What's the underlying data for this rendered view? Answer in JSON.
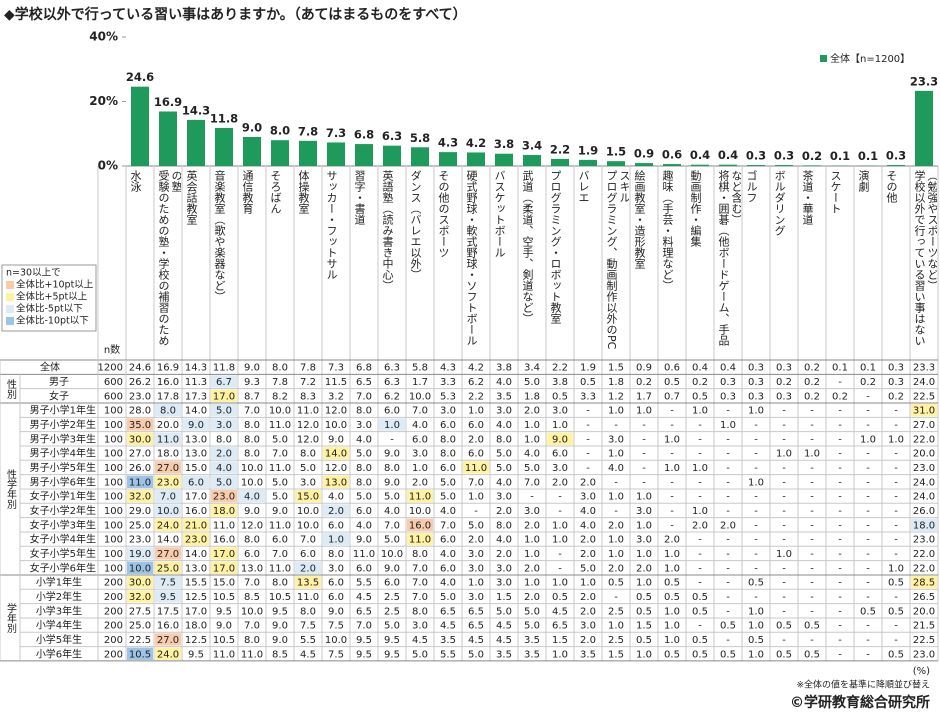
{
  "chart_data": {
    "type": "bar",
    "title": "◆学校以外で行っている習い事はありますか。（あてはまるものをすべて）",
    "categories": [
      "水泳",
      "受験のための塾・学校の補習のための塾",
      "英会話教室",
      "音楽教室（歌や楽器など）",
      "通信教育",
      "そろばん",
      "体操教室",
      "サッカー・フットサル",
      "習字・書道",
      "英語塾（読み書き中心）",
      "ダンス（バレエ以外）",
      "その他のスポーツ",
      "硬式野球・軟式野球・ソフトボール",
      "バスケットボール",
      "武道（柔道、空手、剣道など）",
      "プログラミング・ロボット教室",
      "バレエ",
      "プログラミング、動画制作以外のPCスキル",
      "絵画教室・造形教室",
      "趣味（手芸・料理など）",
      "動画制作・編集",
      "将棋・囲碁（他ボードゲーム、手品など含む）",
      "ゴルフ",
      "ボルダリング",
      "茶道・華道",
      "スケート",
      "演劇",
      "その他",
      "学校以外で行っている習い事はない（勉強やスポーツなど）"
    ],
    "series": [
      {
        "name": "全体【n=1200】",
        "color": "#1e9a5a",
        "values": [
          24.6,
          16.9,
          14.3,
          11.8,
          9.0,
          8.0,
          7.8,
          7.3,
          6.8,
          6.3,
          5.8,
          4.3,
          4.2,
          3.8,
          3.4,
          2.2,
          1.9,
          1.5,
          0.9,
          0.6,
          0.4,
          0.4,
          0.3,
          0.3,
          0.2,
          0.1,
          0.1,
          0.3,
          23.3
        ],
        "value_labels": [
          "24.6",
          "16.9",
          "14.3",
          "11.8",
          "9.0",
          "8.0",
          "7.8",
          "7.3",
          "6.8",
          "6.3",
          "5.8",
          "4.3",
          "4.2",
          "3.8",
          "3.4",
          "2.2",
          "1.9",
          "1.5",
          "0.9",
          "0.6",
          "0.4",
          "0.4",
          "0.3",
          "0.3",
          "0.2",
          "0.1",
          "0.1",
          "0.3",
          "23.3"
        ]
      }
    ],
    "ylim": [
      0,
      40
    ],
    "yticks": [
      {
        "value": 0,
        "label": "0%"
      },
      {
        "value": 20,
        "label": "20%"
      },
      {
        "value": 40,
        "label": "40%"
      }
    ],
    "legend_position": "top-right"
  },
  "highlight_legend": {
    "title": "n=30以上で",
    "items": [
      {
        "label": "全体比+10pt以上",
        "value": 10,
        "color": "#f8cbad"
      },
      {
        "label": "全体比+5pt以上",
        "value": 5,
        "color": "#fff2a0"
      },
      {
        "label": "全体比-5pt以下",
        "value": -5,
        "color": "#ddebf7"
      },
      {
        "label": "全体比-10pt以下",
        "value": -10,
        "color": "#9dc3e6"
      }
    ]
  },
  "table": {
    "n_header": "n数",
    "total": {
      "label": "全体",
      "n": 1200,
      "values": [
        "24.6",
        "16.9",
        "14.3",
        "11.8",
        "9.0",
        "8.0",
        "7.8",
        "7.3",
        "6.8",
        "6.3",
        "5.8",
        "4.3",
        "4.2",
        "3.8",
        "3.4",
        "2.2",
        "1.9",
        "1.5",
        "0.9",
        "0.6",
        "0.4",
        "0.4",
        "0.3",
        "0.3",
        "0.2",
        "0.1",
        "0.1",
        "0.3",
        "23.3"
      ]
    },
    "groups": [
      {
        "label": "性別",
        "rows": [
          {
            "label": "男子",
            "n": 600,
            "values": [
              "26.2",
              "16.0",
              "11.3",
              "6.7",
              "9.3",
              "7.8",
              "7.2",
              "11.5",
              "6.5",
              "6.3",
              "1.7",
              "3.3",
              "6.2",
              "4.0",
              "5.0",
              "3.8",
              "0.5",
              "1.8",
              "0.2",
              "0.5",
              "0.2",
              "0.3",
              "0.3",
              "0.2",
              "0.2",
              "-",
              "0.2",
              "0.3",
              "24.0"
            ]
          },
          {
            "label": "女子",
            "n": 600,
            "values": [
              "23.0",
              "17.8",
              "17.3",
              "17.0",
              "8.7",
              "8.2",
              "8.3",
              "3.2",
              "7.0",
              "6.2",
              "10.0",
              "5.3",
              "2.2",
              "3.5",
              "1.8",
              "0.5",
              "3.3",
              "1.2",
              "1.7",
              "0.7",
              "0.5",
              "0.3",
              "0.3",
              "0.3",
              "0.2",
              "0.2",
              "-",
              "0.2",
              "22.5"
            ]
          }
        ]
      },
      {
        "label": "性学年別",
        "rows": [
          {
            "label": "男子小学1年生",
            "n": 100,
            "values": [
              "28.0",
              "8.0",
              "14.0",
              "5.0",
              "7.0",
              "10.0",
              "11.0",
              "12.0",
              "8.0",
              "6.0",
              "7.0",
              "3.0",
              "1.0",
              "3.0",
              "2.0",
              "3.0",
              "-",
              "1.0",
              "1.0",
              "-",
              "1.0",
              "-",
              "1.0",
              "-",
              "-",
              "-",
              "-",
              "-",
              "31.0"
            ]
          },
          {
            "label": "男子小学2年生",
            "n": 100,
            "values": [
              "35.0",
              "20.0",
              "9.0",
              "3.0",
              "8.0",
              "11.0",
              "12.0",
              "10.0",
              "3.0",
              "1.0",
              "4.0",
              "6.0",
              "6.0",
              "4.0",
              "1.0",
              "1.0",
              "-",
              "-",
              "-",
              "-",
              "-",
              "1.0",
              "-",
              "-",
              "-",
              "-",
              "-",
              "-",
              "27.0"
            ]
          },
          {
            "label": "男子小学3年生",
            "n": 100,
            "values": [
              "30.0",
              "11.0",
              "13.0",
              "8.0",
              "8.0",
              "5.0",
              "12.0",
              "9.0",
              "4.0",
              "-",
              "6.0",
              "8.0",
              "2.0",
              "8.0",
              "1.0",
              "9.0",
              "-",
              "3.0",
              "-",
              "1.0",
              "-",
              "-",
              "-",
              "-",
              "-",
              "-",
              "1.0",
              "1.0",
              "22.0"
            ]
          },
          {
            "label": "男子小学4年生",
            "n": 100,
            "values": [
              "27.0",
              "18.0",
              "13.0",
              "2.0",
              "8.0",
              "7.0",
              "8.0",
              "14.0",
              "5.0",
              "9.0",
              "3.0",
              "8.0",
              "6.0",
              "5.0",
              "4.0",
              "6.0",
              "-",
              "1.0",
              "-",
              "-",
              "-",
              "-",
              "-",
              "1.0",
              "1.0",
              "-",
              "-",
              "-",
              "20.0"
            ]
          },
          {
            "label": "男子小学5年生",
            "n": 100,
            "values": [
              "26.0",
              "27.0",
              "15.0",
              "4.0",
              "10.0",
              "11.0",
              "5.0",
              "12.0",
              "8.0",
              "8.0",
              "1.0",
              "6.0",
              "11.0",
              "5.0",
              "5.0",
              "3.0",
              "-",
              "4.0",
              "-",
              "1.0",
              "1.0",
              "-",
              "-",
              "-",
              "-",
              "-",
              "-",
              "-",
              "23.0"
            ]
          },
          {
            "label": "男子小学6年生",
            "n": 100,
            "values": [
              "11.0",
              "23.0",
              "6.0",
              "5.0",
              "10.0",
              "5.0",
              "3.0",
              "13.0",
              "8.0",
              "9.0",
              "2.0",
              "5.0",
              "7.0",
              "4.0",
              "7.0",
              "2.0",
              "2.0",
              "-",
              "-",
              "-",
              "-",
              "-",
              "1.0",
              "-",
              "-",
              "-",
              "-",
              "-",
              "24.0"
            ]
          },
          {
            "label": "女子小学1年生",
            "n": 100,
            "values": [
              "32.0",
              "7.0",
              "17.0",
              "23.0",
              "4.0",
              "5.0",
              "15.0",
              "4.0",
              "5.0",
              "5.0",
              "11.0",
              "5.0",
              "1.0",
              "3.0",
              "-",
              "-",
              "3.0",
              "1.0",
              "1.0",
              "-",
              "-",
              "-",
              "-",
              "-",
              "-",
              "-",
              "-",
              "-",
              "24.0"
            ]
          },
          {
            "label": "女子小学2年生",
            "n": 100,
            "values": [
              "29.0",
              "10.0",
              "16.0",
              "18.0",
              "9.0",
              "9.0",
              "10.0",
              "2.0",
              "6.0",
              "4.0",
              "10.0",
              "4.0",
              "-",
              "2.0",
              "3.0",
              "-",
              "4.0",
              "-",
              "3.0",
              "-",
              "1.0",
              "-",
              "-",
              "-",
              "-",
              "-",
              "-",
              "-",
              "26.0"
            ]
          },
          {
            "label": "女子小学3年生",
            "n": 100,
            "values": [
              "25.0",
              "24.0",
              "21.0",
              "11.0",
              "12.0",
              "11.0",
              "10.0",
              "6.0",
              "4.0",
              "7.0",
              "16.0",
              "7.0",
              "5.0",
              "8.0",
              "2.0",
              "1.0",
              "4.0",
              "2.0",
              "1.0",
              "-",
              "2.0",
              "2.0",
              "-",
              "-",
              "-",
              "-",
              "-",
              "-",
              "18.0"
            ]
          },
          {
            "label": "女子小学4年生",
            "n": 100,
            "values": [
              "23.0",
              "14.0",
              "23.0",
              "16.0",
              "8.0",
              "6.0",
              "7.0",
              "1.0",
              "9.0",
              "5.0",
              "11.0",
              "6.0",
              "2.0",
              "4.0",
              "1.0",
              "1.0",
              "2.0",
              "1.0",
              "3.0",
              "2.0",
              "-",
              "-",
              "-",
              "-",
              "-",
              "-",
              "-",
              "-",
              "23.0"
            ]
          },
          {
            "label": "女子小学5年生",
            "n": 100,
            "values": [
              "19.0",
              "27.0",
              "14.0",
              "17.0",
              "6.0",
              "7.0",
              "6.0",
              "8.0",
              "11.0",
              "10.0",
              "8.0",
              "4.0",
              "3.0",
              "2.0",
              "1.0",
              "-",
              "2.0",
              "1.0",
              "1.0",
              "1.0",
              "-",
              "-",
              "-",
              "1.0",
              "-",
              "-",
              "-",
              "-",
              "22.0"
            ]
          },
          {
            "label": "女子小学6年生",
            "n": 100,
            "values": [
              "10.0",
              "25.0",
              "13.0",
              "17.0",
              "13.0",
              "11.0",
              "2.0",
              "3.0",
              "6.0",
              "9.0",
              "7.0",
              "6.0",
              "3.0",
              "3.0",
              "2.0",
              "-",
              "5.0",
              "2.0",
              "2.0",
              "1.0",
              "-",
              "-",
              "-",
              "-",
              "-",
              "-",
              "-",
              "1.0",
              "22.0"
            ]
          }
        ]
      },
      {
        "label": "学年別",
        "rows": [
          {
            "label": "小学1年生",
            "n": 200,
            "values": [
              "30.0",
              "7.5",
              "15.5",
              "15.0",
              "7.0",
              "8.0",
              "13.5",
              "6.0",
              "5.5",
              "6.0",
              "7.0",
              "4.0",
              "1.0",
              "3.0",
              "1.0",
              "1.0",
              "1.0",
              "0.5",
              "1.0",
              "0.5",
              "-",
              "-",
              "0.5",
              "-",
              "-",
              "-",
              "-",
              "0.5",
              "28.5"
            ]
          },
          {
            "label": "小学2年生",
            "n": 200,
            "values": [
              "32.0",
              "9.5",
              "12.5",
              "10.5",
              "8.5",
              "10.5",
              "11.0",
              "6.0",
              "4.5",
              "2.5",
              "7.0",
              "5.0",
              "3.0",
              "1.5",
              "2.0",
              "0.5",
              "2.0",
              "-",
              "0.5",
              "0.5",
              "0.5",
              "-",
              "-",
              "-",
              "-",
              "-",
              "-",
              "-",
              "26.5"
            ]
          },
          {
            "label": "小学3年生",
            "n": 200,
            "values": [
              "27.5",
              "17.5",
              "17.0",
              "9.5",
              "10.0",
              "9.5",
              "8.0",
              "9.0",
              "6.5",
              "2.5",
              "8.0",
              "6.5",
              "6.5",
              "5.0",
              "5.0",
              "4.5",
              "2.0",
              "2.5",
              "0.5",
              "1.0",
              "0.5",
              "-",
              "1.0",
              "-",
              "-",
              "-",
              "0.5",
              "0.5",
              "20.0"
            ]
          },
          {
            "label": "小学4年生",
            "n": 200,
            "values": [
              "25.0",
              "16.0",
              "18.0",
              "9.0",
              "7.0",
              "9.0",
              "7.5",
              "7.5",
              "7.0",
              "5.0",
              "3.0",
              "4.5",
              "6.5",
              "4.5",
              "5.0",
              "6.5",
              "3.0",
              "1.0",
              "1.5",
              "1.0",
              "-",
              "0.5",
              "1.0",
              "0.5",
              "0.5",
              "-",
              "-",
              "-",
              "21.5"
            ]
          },
          {
            "label": "小学5年生",
            "n": 200,
            "values": [
              "22.5",
              "27.0",
              "12.5",
              "10.5",
              "8.0",
              "9.0",
              "5.5",
              "10.0",
              "9.5",
              "9.5",
              "4.5",
              "3.5",
              "4.5",
              "4.5",
              "3.5",
              "1.5",
              "2.0",
              "2.5",
              "0.5",
              "1.0",
              "0.5",
              "-",
              "0.5",
              "-",
              "-",
              "-",
              "-",
              "-",
              "22.5"
            ]
          },
          {
            "label": "小学6年生",
            "n": 200,
            "values": [
              "10.5",
              "24.0",
              "9.5",
              "11.0",
              "11.0",
              "8.5",
              "4.5",
              "7.5",
              "9.5",
              "9.5",
              "5.0",
              "5.5",
              "5.0",
              "3.5",
              "3.5",
              "1.0",
              "3.5",
              "1.5",
              "1.0",
              "0.5",
              "0.5",
              "0.5",
              "1.0",
              "0.5",
              "0.5",
              "-",
              "-",
              "0.5",
              "23.0"
            ]
          }
        ]
      }
    ]
  },
  "notes": {
    "unit": "(%)",
    "sort_note": "※全体の値を基準に降順並び替え",
    "copyright": "©学研教育総合研究所"
  }
}
